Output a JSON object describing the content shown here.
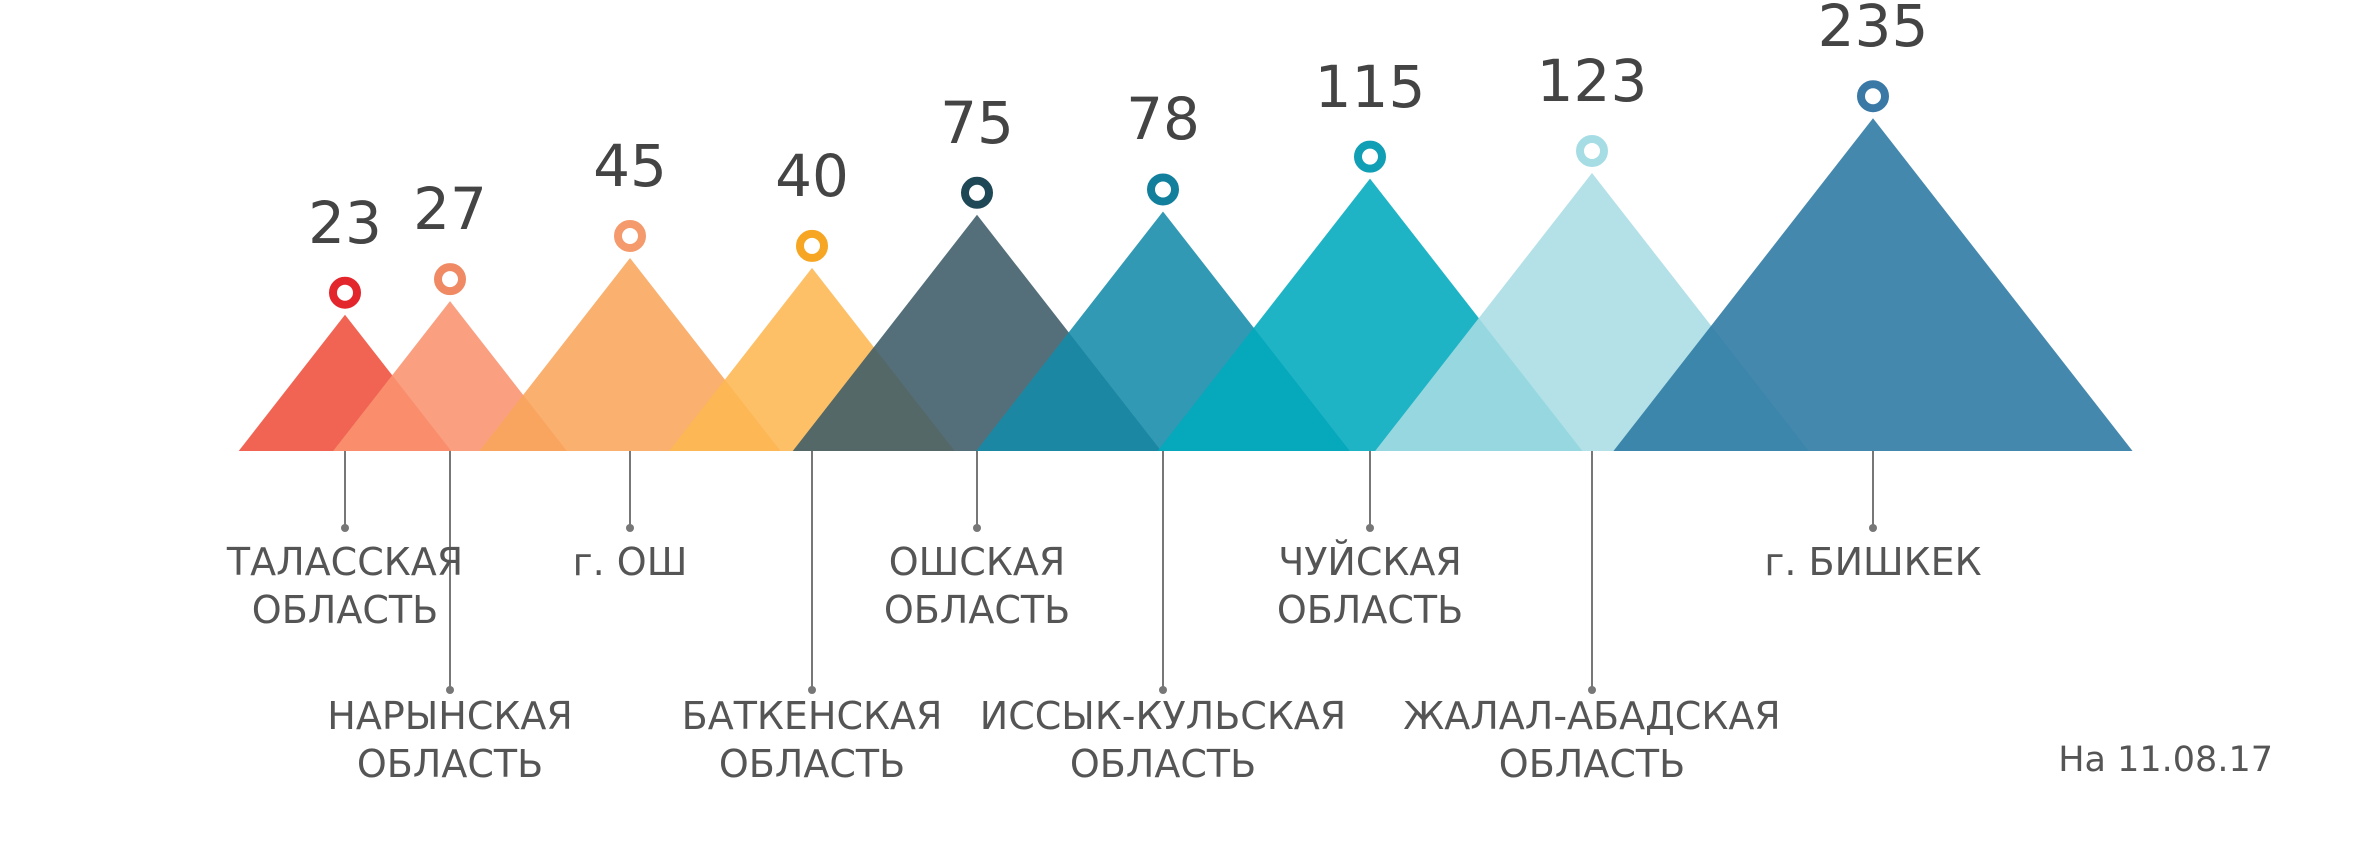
{
  "chart_data": {
    "type": "triangle",
    "categories": [
      "ТАЛАССКАЯ\nОБЛАСТЬ",
      "НАРЫНСКАЯ\nОБЛАСТЬ",
      "г. ОШ",
      "БАТКЕНСКАЯ\nОБЛАСТЬ",
      "ОШСКАЯ\nОБЛАСТЬ",
      "ИССЫК-КУЛЬСКАЯ\nОБЛАСТЬ",
      "ЧУЙСКАЯ\nОБЛАСТЬ",
      "ЖАЛАЛ-АБАДСКАЯ\nОБЛАСТЬ",
      "г. БИШКЕК"
    ],
    "values": [
      23,
      27,
      45,
      40,
      75,
      78,
      115,
      123,
      235
    ],
    "colors": [
      "#ef4f3b",
      "#f9936f",
      "#f9a55a",
      "#fdb752",
      "#3c5b68",
      "#158ba8",
      "#00aabd",
      "#a9dde4",
      "#2b78a3"
    ],
    "marker_colors": [
      "#e3262c",
      "#f08a64",
      "#f49a6c",
      "#f6a623",
      "#1f4856",
      "#12809d",
      "#109fb4",
      "#a6dde5",
      "#3a79a6"
    ],
    "note": "На 11.08.17"
  }
}
